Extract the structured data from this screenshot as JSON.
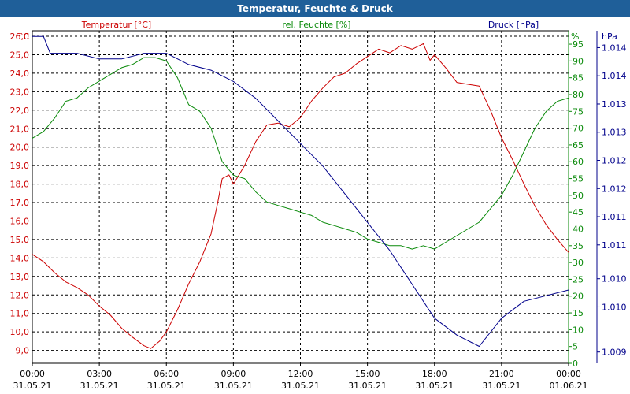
{
  "window": {
    "title": "Temperatur, Feuchte & Druck"
  },
  "colors": {
    "temperature": "#cc0000",
    "humidity": "#0a8a0a",
    "pressure": "#00008b",
    "text": "#000000",
    "grid": "#000000",
    "titlebar": "#1f5f99"
  },
  "chart_data": {
    "type": "line",
    "title": "Temperatur, Feuchte & Druck",
    "x": {
      "range_hours": [
        0,
        24
      ],
      "ticks": [
        {
          "h": 0,
          "time": "00:00",
          "date": "31.05.21"
        },
        {
          "h": 3,
          "time": "03:00",
          "date": "31.05.21"
        },
        {
          "h": 6,
          "time": "06:00",
          "date": "31.05.21"
        },
        {
          "h": 9,
          "time": "09:00",
          "date": "31.05.21"
        },
        {
          "h": 12,
          "time": "12:00",
          "date": "31.05.21"
        },
        {
          "h": 15,
          "time": "15:00",
          "date": "31.05.21"
        },
        {
          "h": 18,
          "time": "18:00",
          "date": "31.05.21"
        },
        {
          "h": 21,
          "time": "21:00",
          "date": "31.05.21"
        },
        {
          "h": 24,
          "time": "00:00",
          "date": "01.06.21"
        }
      ]
    },
    "axes": {
      "temperature": {
        "label": "Temperatur [°C]",
        "unit": "°C",
        "range": [
          8.3,
          26.3
        ],
        "ticks": [
          [
            "9,0",
            9
          ],
          [
            "10,0",
            10
          ],
          [
            "11,0",
            11
          ],
          [
            "12,0",
            12
          ],
          [
            "13,0",
            13
          ],
          [
            "14,0",
            14
          ],
          [
            "15,0",
            15
          ],
          [
            "16,0",
            16
          ],
          [
            "17,0",
            17
          ],
          [
            "18,0",
            18
          ],
          [
            "19,0",
            19
          ],
          [
            "20,0",
            20
          ],
          [
            "21,0",
            21
          ],
          [
            "22,0",
            22
          ],
          [
            "23,0",
            23
          ],
          [
            "24,0",
            24
          ],
          [
            "25,0",
            25
          ],
          [
            "26,0",
            26
          ]
        ]
      },
      "humidity": {
        "label": "rel. Feuchte [%]",
        "unit": "%",
        "range": [
          0,
          99
        ],
        "ticks": [
          [
            "0",
            0
          ],
          [
            "5",
            5
          ],
          [
            "10",
            10
          ],
          [
            "15",
            15
          ],
          [
            "20",
            20
          ],
          [
            "25",
            25
          ],
          [
            "30",
            30
          ],
          [
            "35",
            35
          ],
          [
            "40",
            40
          ],
          [
            "45",
            45
          ],
          [
            "50",
            50
          ],
          [
            "55",
            55
          ],
          [
            "60",
            60
          ],
          [
            "65",
            65
          ],
          [
            "70",
            70
          ],
          [
            "75",
            75
          ],
          [
            "80",
            80
          ],
          [
            "85",
            85
          ],
          [
            "90",
            90
          ],
          [
            "95",
            95
          ]
        ]
      },
      "pressure": {
        "label": "Druck [hPa]",
        "unit": "hPa",
        "range": [
          1008.8,
          1014.7
        ],
        "ticks": [
          [
            "1.009",
            1009.0
          ],
          [
            "1.010",
            1009.8
          ],
          [
            "1.010",
            1010.3
          ],
          [
            "1.011",
            1010.9
          ],
          [
            "1.011",
            1011.4
          ],
          [
            "1.012",
            1011.9
          ],
          [
            "1.012",
            1012.4
          ],
          [
            "1.013",
            1012.9
          ],
          [
            "1.013",
            1013.4
          ],
          [
            "1.014",
            1013.9
          ],
          [
            "1.014",
            1014.4
          ]
        ]
      }
    },
    "series": [
      {
        "name": "Temperatur",
        "axis": "temperature",
        "points": [
          [
            0,
            14.2
          ],
          [
            0.5,
            13.8
          ],
          [
            1,
            13.2
          ],
          [
            1.5,
            12.7
          ],
          [
            2,
            12.4
          ],
          [
            2.5,
            12.0
          ],
          [
            3,
            11.4
          ],
          [
            3.5,
            10.9
          ],
          [
            4,
            10.2
          ],
          [
            4.5,
            9.7
          ],
          [
            5,
            9.25
          ],
          [
            5.3,
            9.1
          ],
          [
            5.7,
            9.5
          ],
          [
            6,
            10.0
          ],
          [
            6.5,
            11.2
          ],
          [
            7,
            12.6
          ],
          [
            7.5,
            13.8
          ],
          [
            8,
            15.3
          ],
          [
            8.3,
            17.0
          ],
          [
            8.5,
            18.3
          ],
          [
            8.8,
            18.5
          ],
          [
            9,
            18.0
          ],
          [
            9.5,
            19.0
          ],
          [
            10,
            20.3
          ],
          [
            10.5,
            21.2
          ],
          [
            11,
            21.3
          ],
          [
            11.5,
            21.1
          ],
          [
            12,
            21.6
          ],
          [
            12.5,
            22.5
          ],
          [
            13,
            23.2
          ],
          [
            13.5,
            23.8
          ],
          [
            14,
            24.0
          ],
          [
            14.5,
            24.5
          ],
          [
            15,
            24.9
          ],
          [
            15.5,
            25.3
          ],
          [
            16,
            25.1
          ],
          [
            16.5,
            25.5
          ],
          [
            17,
            25.3
          ],
          [
            17.5,
            25.6
          ],
          [
            17.8,
            24.7
          ],
          [
            18,
            25.0
          ],
          [
            18.5,
            24.3
          ],
          [
            19,
            23.5
          ],
          [
            19.5,
            23.4
          ],
          [
            20,
            23.3
          ],
          [
            20.5,
            22.0
          ],
          [
            21,
            20.5
          ],
          [
            21.5,
            19.3
          ],
          [
            22,
            18.0
          ],
          [
            22.5,
            16.8
          ],
          [
            23,
            15.8
          ],
          [
            23.5,
            15.0
          ],
          [
            24,
            14.3
          ]
        ]
      },
      {
        "name": "rel. Feuchte",
        "axis": "humidity",
        "points": [
          [
            0,
            67
          ],
          [
            0.5,
            69
          ],
          [
            1,
            73
          ],
          [
            1.5,
            78
          ],
          [
            2,
            79
          ],
          [
            2.5,
            82
          ],
          [
            3,
            84
          ],
          [
            3.5,
            86
          ],
          [
            4,
            88
          ],
          [
            4.5,
            89
          ],
          [
            5,
            91
          ],
          [
            5.5,
            91
          ],
          [
            6,
            90
          ],
          [
            6.5,
            85
          ],
          [
            7,
            77
          ],
          [
            7.5,
            75
          ],
          [
            8,
            70
          ],
          [
            8.5,
            60
          ],
          [
            9,
            56
          ],
          [
            9.5,
            55
          ],
          [
            10,
            51
          ],
          [
            10.5,
            48
          ],
          [
            11,
            47
          ],
          [
            11.5,
            46
          ],
          [
            12,
            45
          ],
          [
            12.5,
            44
          ],
          [
            13,
            42
          ],
          [
            13.5,
            41
          ],
          [
            14,
            40
          ],
          [
            14.5,
            39
          ],
          [
            15,
            37
          ],
          [
            15.5,
            36
          ],
          [
            16,
            35
          ],
          [
            16.5,
            35
          ],
          [
            17,
            34
          ],
          [
            17.5,
            35
          ],
          [
            18,
            34
          ],
          [
            18.5,
            36
          ],
          [
            19,
            38
          ],
          [
            19.5,
            40
          ],
          [
            20,
            42
          ],
          [
            20.5,
            46
          ],
          [
            21,
            50
          ],
          [
            21.5,
            56
          ],
          [
            22,
            63
          ],
          [
            22.5,
            70
          ],
          [
            23,
            75
          ],
          [
            23.5,
            78
          ],
          [
            24,
            79
          ]
        ]
      },
      {
        "name": "Druck",
        "axis": "pressure",
        "points": [
          [
            0,
            1014.6
          ],
          [
            0.5,
            1014.6
          ],
          [
            0.8,
            1014.3
          ],
          [
            1,
            1014.3
          ],
          [
            2,
            1014.3
          ],
          [
            3,
            1014.2
          ],
          [
            4,
            1014.2
          ],
          [
            5,
            1014.3
          ],
          [
            6,
            1014.3
          ],
          [
            7,
            1014.1
          ],
          [
            8,
            1014.0
          ],
          [
            9,
            1013.8
          ],
          [
            10,
            1013.5
          ],
          [
            11,
            1013.1
          ],
          [
            12,
            1012.7
          ],
          [
            13,
            1012.3
          ],
          [
            14,
            1011.8
          ],
          [
            15,
            1011.3
          ],
          [
            16,
            1010.8
          ],
          [
            17,
            1010.2
          ],
          [
            18,
            1009.6
          ],
          [
            19,
            1009.3
          ],
          [
            20,
            1009.1
          ],
          [
            21,
            1009.6
          ],
          [
            22,
            1009.9
          ],
          [
            23,
            1010.0
          ],
          [
            24,
            1010.1
          ]
        ]
      }
    ]
  }
}
